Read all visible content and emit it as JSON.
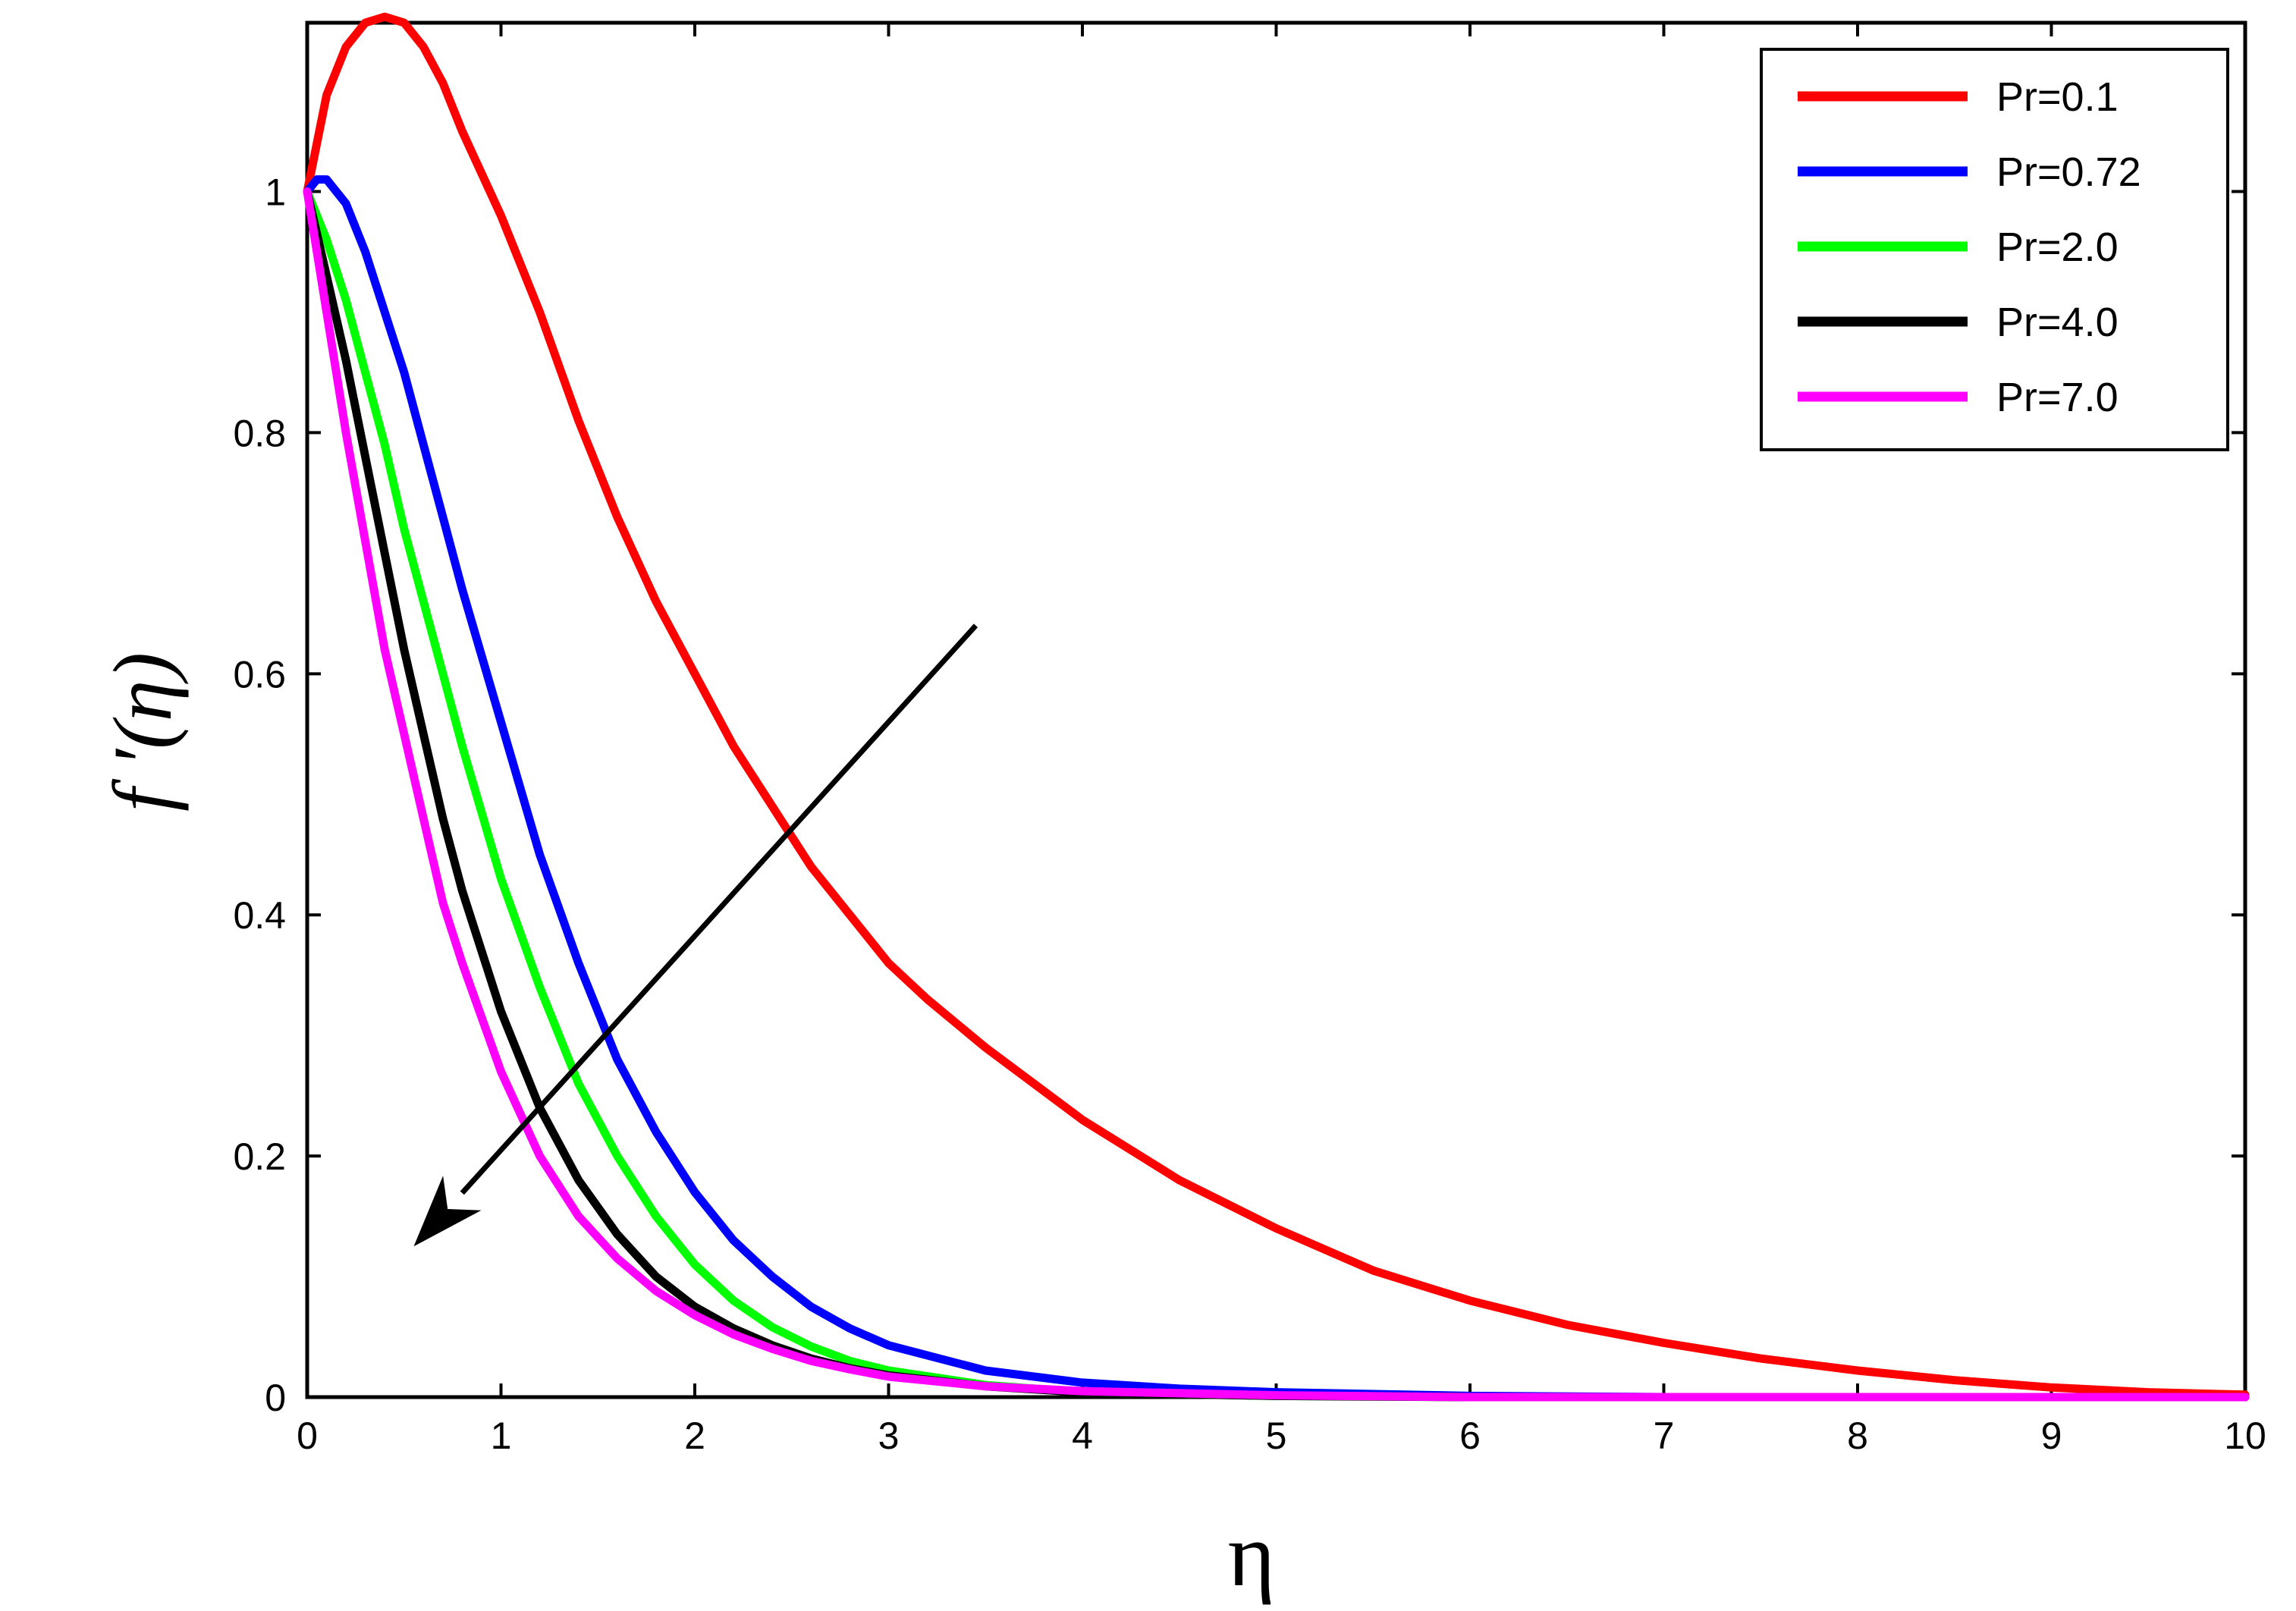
{
  "chart_data": {
    "type": "line",
    "xlabel": "η",
    "ylabel": "f ′(η)",
    "xlim": [
      0,
      10
    ],
    "ylim": [
      0,
      1.14
    ],
    "xticks": [
      0,
      1,
      2,
      3,
      4,
      5,
      6,
      7,
      8,
      9,
      10
    ],
    "yticks": [
      0,
      0.2,
      0.4,
      0.6,
      0.8,
      1
    ],
    "xtick_labels": [
      "0",
      "1",
      "2",
      "3",
      "4",
      "5",
      "6",
      "7",
      "8",
      "9",
      "10"
    ],
    "ytick_labels": [
      "0",
      "0.2",
      "0.4",
      "0.6",
      "0.8",
      "1"
    ],
    "grid": false,
    "legend": "top-right",
    "series": [
      {
        "name": "Pr=0.1",
        "color": "#ff0000",
        "x": [
          0,
          0.1,
          0.2,
          0.3,
          0.4,
          0.5,
          0.6,
          0.7,
          0.8,
          1.0,
          1.2,
          1.4,
          1.6,
          1.8,
          2.0,
          2.2,
          2.4,
          2.6,
          2.8,
          3.0,
          3.2,
          3.5,
          4.0,
          4.5,
          5.0,
          5.5,
          6.0,
          6.5,
          7.0,
          7.5,
          8.0,
          8.5,
          9.0,
          9.5,
          10.0
        ],
        "y": [
          1.0,
          1.08,
          1.12,
          1.14,
          1.145,
          1.14,
          1.12,
          1.09,
          1.05,
          0.98,
          0.9,
          0.81,
          0.73,
          0.66,
          0.6,
          0.54,
          0.49,
          0.44,
          0.4,
          0.36,
          0.33,
          0.29,
          0.23,
          0.18,
          0.14,
          0.105,
          0.08,
          0.06,
          0.045,
          0.032,
          0.022,
          0.014,
          0.008,
          0.004,
          0.002
        ]
      },
      {
        "name": "Pr=0.72",
        "color": "#0000ff",
        "x": [
          0,
          0.05,
          0.1,
          0.2,
          0.3,
          0.4,
          0.5,
          0.6,
          0.7,
          0.8,
          1.0,
          1.2,
          1.4,
          1.6,
          1.8,
          2.0,
          2.2,
          2.4,
          2.6,
          2.8,
          3.0,
          3.5,
          4.0,
          4.5,
          5.0,
          6.0,
          7.0,
          8.0,
          9.0,
          10.0
        ],
        "y": [
          1.0,
          1.01,
          1.01,
          0.99,
          0.95,
          0.9,
          0.85,
          0.79,
          0.73,
          0.67,
          0.56,
          0.45,
          0.36,
          0.28,
          0.22,
          0.17,
          0.13,
          0.1,
          0.075,
          0.057,
          0.043,
          0.022,
          0.012,
          0.007,
          0.004,
          0.001,
          0.0,
          0.0,
          0.0,
          0.0
        ]
      },
      {
        "name": "Pr=2.0",
        "color": "#00ff00",
        "x": [
          0,
          0.1,
          0.2,
          0.3,
          0.4,
          0.5,
          0.6,
          0.7,
          0.8,
          1.0,
          1.2,
          1.4,
          1.6,
          1.8,
          2.0,
          2.2,
          2.4,
          2.6,
          2.8,
          3.0,
          3.5,
          4.0,
          5.0,
          6.0,
          8.0,
          10.0
        ],
        "y": [
          1.0,
          0.96,
          0.91,
          0.85,
          0.79,
          0.72,
          0.66,
          0.6,
          0.54,
          0.43,
          0.34,
          0.26,
          0.2,
          0.15,
          0.11,
          0.08,
          0.058,
          0.042,
          0.03,
          0.022,
          0.01,
          0.004,
          0.001,
          0.0,
          0.0,
          0.0
        ]
      },
      {
        "name": "Pr=4.0",
        "color": "#000000",
        "x": [
          0,
          0.1,
          0.2,
          0.3,
          0.4,
          0.5,
          0.6,
          0.7,
          0.8,
          1.0,
          1.2,
          1.4,
          1.6,
          1.8,
          2.0,
          2.2,
          2.4,
          2.6,
          2.8,
          3.0,
          3.5,
          4.0,
          5.0,
          6.0,
          8.0,
          10.0
        ],
        "y": [
          1.0,
          0.93,
          0.86,
          0.78,
          0.7,
          0.62,
          0.55,
          0.48,
          0.42,
          0.32,
          0.24,
          0.18,
          0.135,
          0.1,
          0.075,
          0.057,
          0.043,
          0.032,
          0.024,
          0.018,
          0.009,
          0.004,
          0.001,
          0.0,
          0.0,
          0.0
        ]
      },
      {
        "name": "Pr=7.0",
        "color": "#ff00ff",
        "x": [
          0,
          0.1,
          0.2,
          0.3,
          0.4,
          0.5,
          0.6,
          0.7,
          0.8,
          1.0,
          1.2,
          1.4,
          1.6,
          1.8,
          2.0,
          2.2,
          2.4,
          2.6,
          2.8,
          3.0,
          3.5,
          4.0,
          5.0,
          6.0,
          8.0,
          10.0
        ],
        "y": [
          1.0,
          0.9,
          0.8,
          0.71,
          0.62,
          0.55,
          0.48,
          0.41,
          0.36,
          0.27,
          0.2,
          0.15,
          0.115,
          0.088,
          0.068,
          0.052,
          0.04,
          0.03,
          0.023,
          0.017,
          0.009,
          0.005,
          0.0015,
          0.0,
          0.0,
          0.0
        ]
      }
    ],
    "annotations": [
      {
        "type": "arrow",
        "from": [
          3.45,
          0.64
        ],
        "to": [
          0.55,
          0.125
        ],
        "color": "#000000"
      }
    ]
  }
}
